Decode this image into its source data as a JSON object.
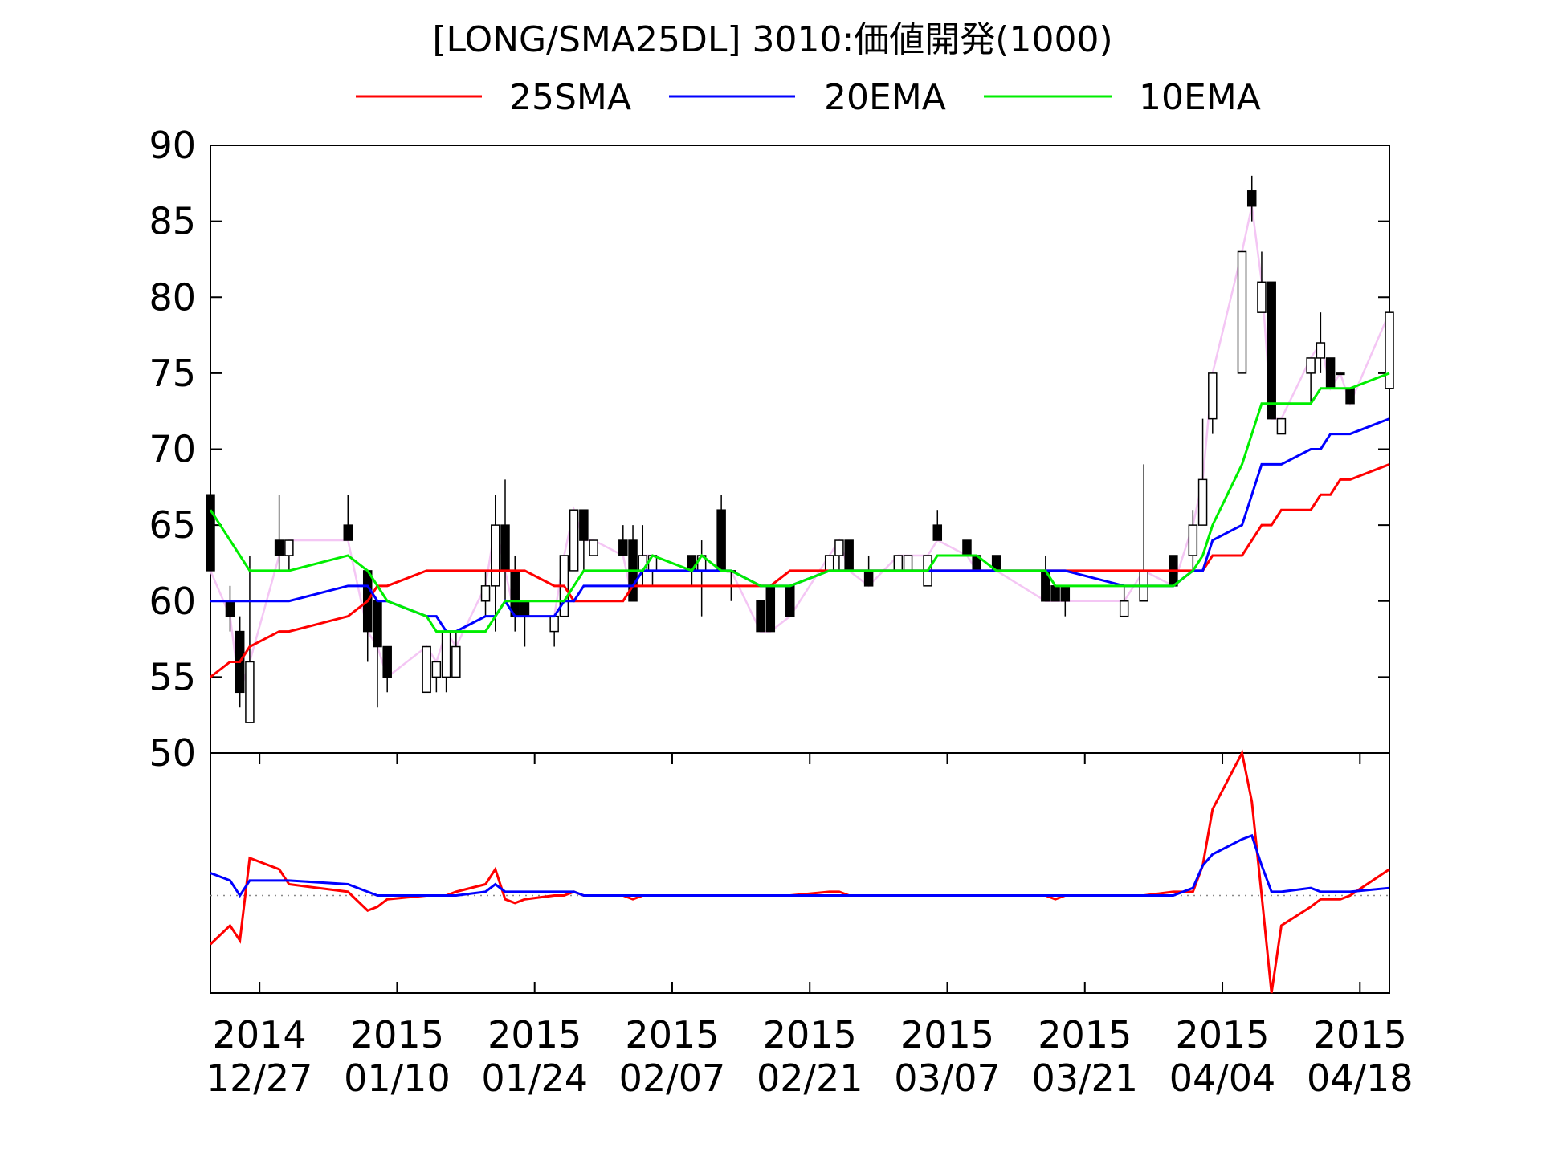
{
  "chart_data": [
    {
      "type": "candlestick",
      "title": "[LONG/SMA25DL] 3010:価値開発(1000)",
      "x": [
        "2014-12-22",
        "2014-12-24",
        "2014-12-25",
        "2014-12-26",
        "2014-12-29",
        "2014-12-30",
        "2015-01-05",
        "2015-01-07",
        "2015-01-08",
        "2015-01-09",
        "2015-01-13",
        "2015-01-14",
        "2015-01-15",
        "2015-01-16",
        "2015-01-19",
        "2015-01-20",
        "2015-01-21",
        "2015-01-22",
        "2015-01-23",
        "2015-01-26",
        "2015-01-27",
        "2015-01-28",
        "2015-01-29",
        "2015-01-30",
        "2015-02-02",
        "2015-02-03",
        "2015-02-04",
        "2015-02-05",
        "2015-02-09",
        "2015-02-10",
        "2015-02-12",
        "2015-02-13",
        "2015-02-16",
        "2015-02-17",
        "2015-02-19",
        "2015-02-23",
        "2015-02-24",
        "2015-02-25",
        "2015-02-27",
        "2015-03-02",
        "2015-03-03",
        "2015-03-05",
        "2015-03-06",
        "2015-03-09",
        "2015-03-10",
        "2015-03-12",
        "2015-03-17",
        "2015-03-18",
        "2015-03-19",
        "2015-03-25",
        "2015-03-27",
        "2015-03-30",
        "2015-04-01",
        "2015-04-02",
        "2015-04-03",
        "2015-04-06",
        "2015-04-07",
        "2015-04-08",
        "2015-04-09",
        "2015-04-10",
        "2015-04-13",
        "2015-04-14",
        "2015-04-15",
        "2015-04-16",
        "2015-04-17",
        "2015-04-21"
      ],
      "open": [
        67,
        60,
        58,
        52,
        64,
        63,
        65,
        62,
        60,
        57,
        54,
        55,
        55,
        55,
        60,
        61,
        65,
        62,
        60,
        58,
        59,
        62,
        66,
        63,
        64,
        64,
        62,
        62,
        63,
        62,
        66,
        62,
        60,
        61,
        61,
        62,
        63,
        64,
        62,
        62,
        62,
        61,
        65,
        64,
        63,
        63,
        62,
        61,
        61,
        59,
        60,
        63,
        63,
        65,
        72,
        75,
        87,
        79,
        81,
        71,
        75,
        76,
        76,
        75,
        74,
        74
      ],
      "high": [
        67,
        61,
        59,
        63,
        67,
        64,
        67,
        62,
        60,
        57,
        57,
        56,
        58,
        58,
        62,
        67,
        68,
        63,
        60,
        59,
        63,
        66,
        66,
        64,
        65,
        65,
        65,
        63,
        63,
        64,
        67,
        62,
        60,
        61,
        61,
        63,
        64,
        64,
        63,
        63,
        63,
        63,
        66,
        64,
        63,
        63,
        63,
        61,
        61,
        61,
        69,
        63,
        66,
        72,
        75,
        83,
        88,
        83,
        81,
        72,
        76,
        79,
        76,
        75,
        74,
        79
      ],
      "low": [
        62,
        58,
        53,
        52,
        62,
        62,
        64,
        56,
        53,
        54,
        54,
        54,
        54,
        55,
        59,
        58,
        60,
        58,
        57,
        57,
        59,
        62,
        62,
        63,
        63,
        60,
        61,
        61,
        61,
        59,
        62,
        60,
        58,
        58,
        59,
        62,
        62,
        62,
        61,
        62,
        62,
        61,
        64,
        63,
        62,
        62,
        60,
        60,
        59,
        59,
        60,
        61,
        62,
        65,
        71,
        75,
        85,
        79,
        72,
        71,
        73,
        75,
        74,
        75,
        73,
        74
      ],
      "close": [
        62,
        59,
        54,
        56,
        63,
        64,
        64,
        58,
        57,
        55,
        57,
        56,
        58,
        57,
        61,
        65,
        62,
        59,
        59,
        59,
        63,
        66,
        64,
        64,
        63,
        60,
        63,
        63,
        62,
        63,
        62,
        62,
        58,
        58,
        59,
        63,
        64,
        62,
        61,
        63,
        63,
        63,
        64,
        63,
        62,
        62,
        60,
        60,
        60,
        60,
        62,
        61,
        65,
        68,
        75,
        83,
        86,
        81,
        72,
        72,
        76,
        77,
        74,
        75,
        73,
        79
      ],
      "up_color": "#ffffff",
      "down_color": "#000000",
      "close_line_color": "#f4c6f4",
      "series": [
        {
          "name": "25SMA",
          "color": "#ff0000",
          "values": [
            55,
            56,
            56,
            57,
            58,
            58,
            59,
            60,
            61,
            61,
            62,
            62,
            62,
            62,
            62,
            62,
            62,
            62,
            62,
            61,
            61,
            60,
            60,
            60,
            60,
            61,
            61,
            61,
            61,
            61,
            61,
            61,
            61,
            61,
            62,
            62,
            62,
            62,
            62,
            62,
            62,
            62,
            62,
            62,
            62,
            62,
            62,
            62,
            62,
            62,
            62,
            62,
            62,
            62,
            63,
            63,
            64,
            65,
            65,
            66,
            66,
            67,
            67,
            68,
            68,
            69
          ]
        },
        {
          "name": "20EMA",
          "color": "#0000ff",
          "values": [
            60,
            60,
            60,
            60,
            60,
            60,
            61,
            61,
            60,
            60,
            59,
            59,
            58,
            58,
            59,
            59,
            60,
            59,
            59,
            59,
            60,
            60,
            61,
            61,
            61,
            61,
            62,
            62,
            62,
            62,
            62,
            62,
            61,
            61,
            61,
            62,
            62,
            62,
            62,
            62,
            62,
            62,
            62,
            62,
            62,
            62,
            62,
            62,
            62,
            61,
            61,
            61,
            62,
            62,
            64,
            65,
            67,
            69,
            69,
            69,
            70,
            70,
            71,
            71,
            71,
            72
          ]
        },
        {
          "name": "10EMA",
          "color": "#00ee00",
          "values": [
            66,
            64,
            63,
            62,
            62,
            62,
            63,
            62,
            61,
            60,
            59,
            58,
            58,
            58,
            58,
            59,
            60,
            60,
            60,
            60,
            60,
            61,
            62,
            62,
            62,
            62,
            62,
            63,
            62,
            63,
            62,
            62,
            61,
            61,
            61,
            62,
            62,
            62,
            62,
            62,
            62,
            62,
            63,
            63,
            63,
            62,
            62,
            61,
            61,
            61,
            61,
            61,
            62,
            63,
            65,
            69,
            71,
            73,
            73,
            73,
            73,
            74,
            74,
            74,
            74,
            75
          ]
        }
      ],
      "xlim": [
        "2014-12-22",
        "2015-04-21"
      ],
      "ylim": [
        50,
        90
      ],
      "yticks": [
        50,
        55,
        60,
        65,
        70,
        75,
        80,
        85,
        90
      ]
    },
    {
      "type": "line",
      "x": [
        "2014-12-22",
        "2014-12-24",
        "2014-12-25",
        "2014-12-26",
        "2014-12-29",
        "2014-12-30",
        "2015-01-05",
        "2015-01-07",
        "2015-01-08",
        "2015-01-09",
        "2015-01-13",
        "2015-01-14",
        "2015-01-15",
        "2015-01-16",
        "2015-01-19",
        "2015-01-20",
        "2015-01-21",
        "2015-01-22",
        "2015-01-23",
        "2015-01-26",
        "2015-01-27",
        "2015-01-28",
        "2015-01-29",
        "2015-01-30",
        "2015-02-02",
        "2015-02-03",
        "2015-02-04",
        "2015-02-05",
        "2015-02-09",
        "2015-02-10",
        "2015-02-12",
        "2015-02-13",
        "2015-02-16",
        "2015-02-17",
        "2015-02-19",
        "2015-02-23",
        "2015-02-24",
        "2015-02-25",
        "2015-02-27",
        "2015-03-02",
        "2015-03-03",
        "2015-03-05",
        "2015-03-06",
        "2015-03-09",
        "2015-03-10",
        "2015-03-12",
        "2015-03-17",
        "2015-03-18",
        "2015-03-19",
        "2015-03-25",
        "2015-03-27",
        "2015-03-30",
        "2015-04-01",
        "2015-04-02",
        "2015-04-03",
        "2015-04-06",
        "2015-04-07",
        "2015-04-08",
        "2015-04-09",
        "2015-04-10",
        "2015-04-13",
        "2015-04-14",
        "2015-04-15",
        "2015-04-16",
        "2015-04-17",
        "2015-04-21"
      ],
      "series": [
        {
          "color": "#ff0000",
          "values": [
            -13,
            -8,
            -12,
            10,
            7,
            3,
            1,
            -4,
            -3,
            -1,
            0,
            0,
            0,
            1,
            3,
            7,
            -1,
            -2,
            -1,
            0,
            0,
            1,
            0,
            0,
            0,
            -1,
            0,
            0,
            0,
            0,
            0,
            0,
            0,
            0,
            0,
            1,
            1,
            0,
            0,
            0,
            0,
            0,
            0,
            0,
            0,
            0,
            0,
            -1,
            0,
            0,
            0,
            1,
            1,
            8,
            23,
            38,
            25,
            0,
            -26,
            -8,
            -3,
            -1,
            -1,
            -1,
            0,
            7
          ]
        },
        {
          "color": "#0000ff",
          "values": [
            6,
            4,
            0,
            4,
            4,
            4,
            3,
            1,
            0,
            0,
            0,
            0,
            0,
            0,
            1,
            3,
            1,
            1,
            1,
            1,
            1,
            1,
            0,
            0,
            0,
            0,
            0,
            0,
            0,
            0,
            0,
            0,
            0,
            0,
            0,
            0,
            0,
            0,
            0,
            0,
            0,
            0,
            0,
            0,
            0,
            0,
            0,
            0,
            0,
            0,
            0,
            0,
            2,
            8,
            11,
            15,
            16,
            8,
            1,
            1,
            2,
            1,
            1,
            1,
            1,
            2
          ]
        }
      ],
      "xlim": [
        "2014-12-22",
        "2015-04-21"
      ],
      "ylim": [
        -26,
        38
      ],
      "xticks": [
        {
          "value": "2014-12-27",
          "label": [
            "2014",
            "12/27"
          ]
        },
        {
          "value": "2015-01-10",
          "label": [
            "2015",
            "01/10"
          ]
        },
        {
          "value": "2015-01-24",
          "label": [
            "2015",
            "01/24"
          ]
        },
        {
          "value": "2015-02-07",
          "label": [
            "2015",
            "02/07"
          ]
        },
        {
          "value": "2015-02-21",
          "label": [
            "2015",
            "02/21"
          ]
        },
        {
          "value": "2015-03-07",
          "label": [
            "2015",
            "03/07"
          ]
        },
        {
          "value": "2015-03-21",
          "label": [
            "2015",
            "03/21"
          ]
        },
        {
          "value": "2015-04-04",
          "label": [
            "2015",
            "04/04"
          ]
        },
        {
          "value": "2015-04-18",
          "label": [
            "2015",
            "04/18"
          ]
        }
      ]
    }
  ]
}
